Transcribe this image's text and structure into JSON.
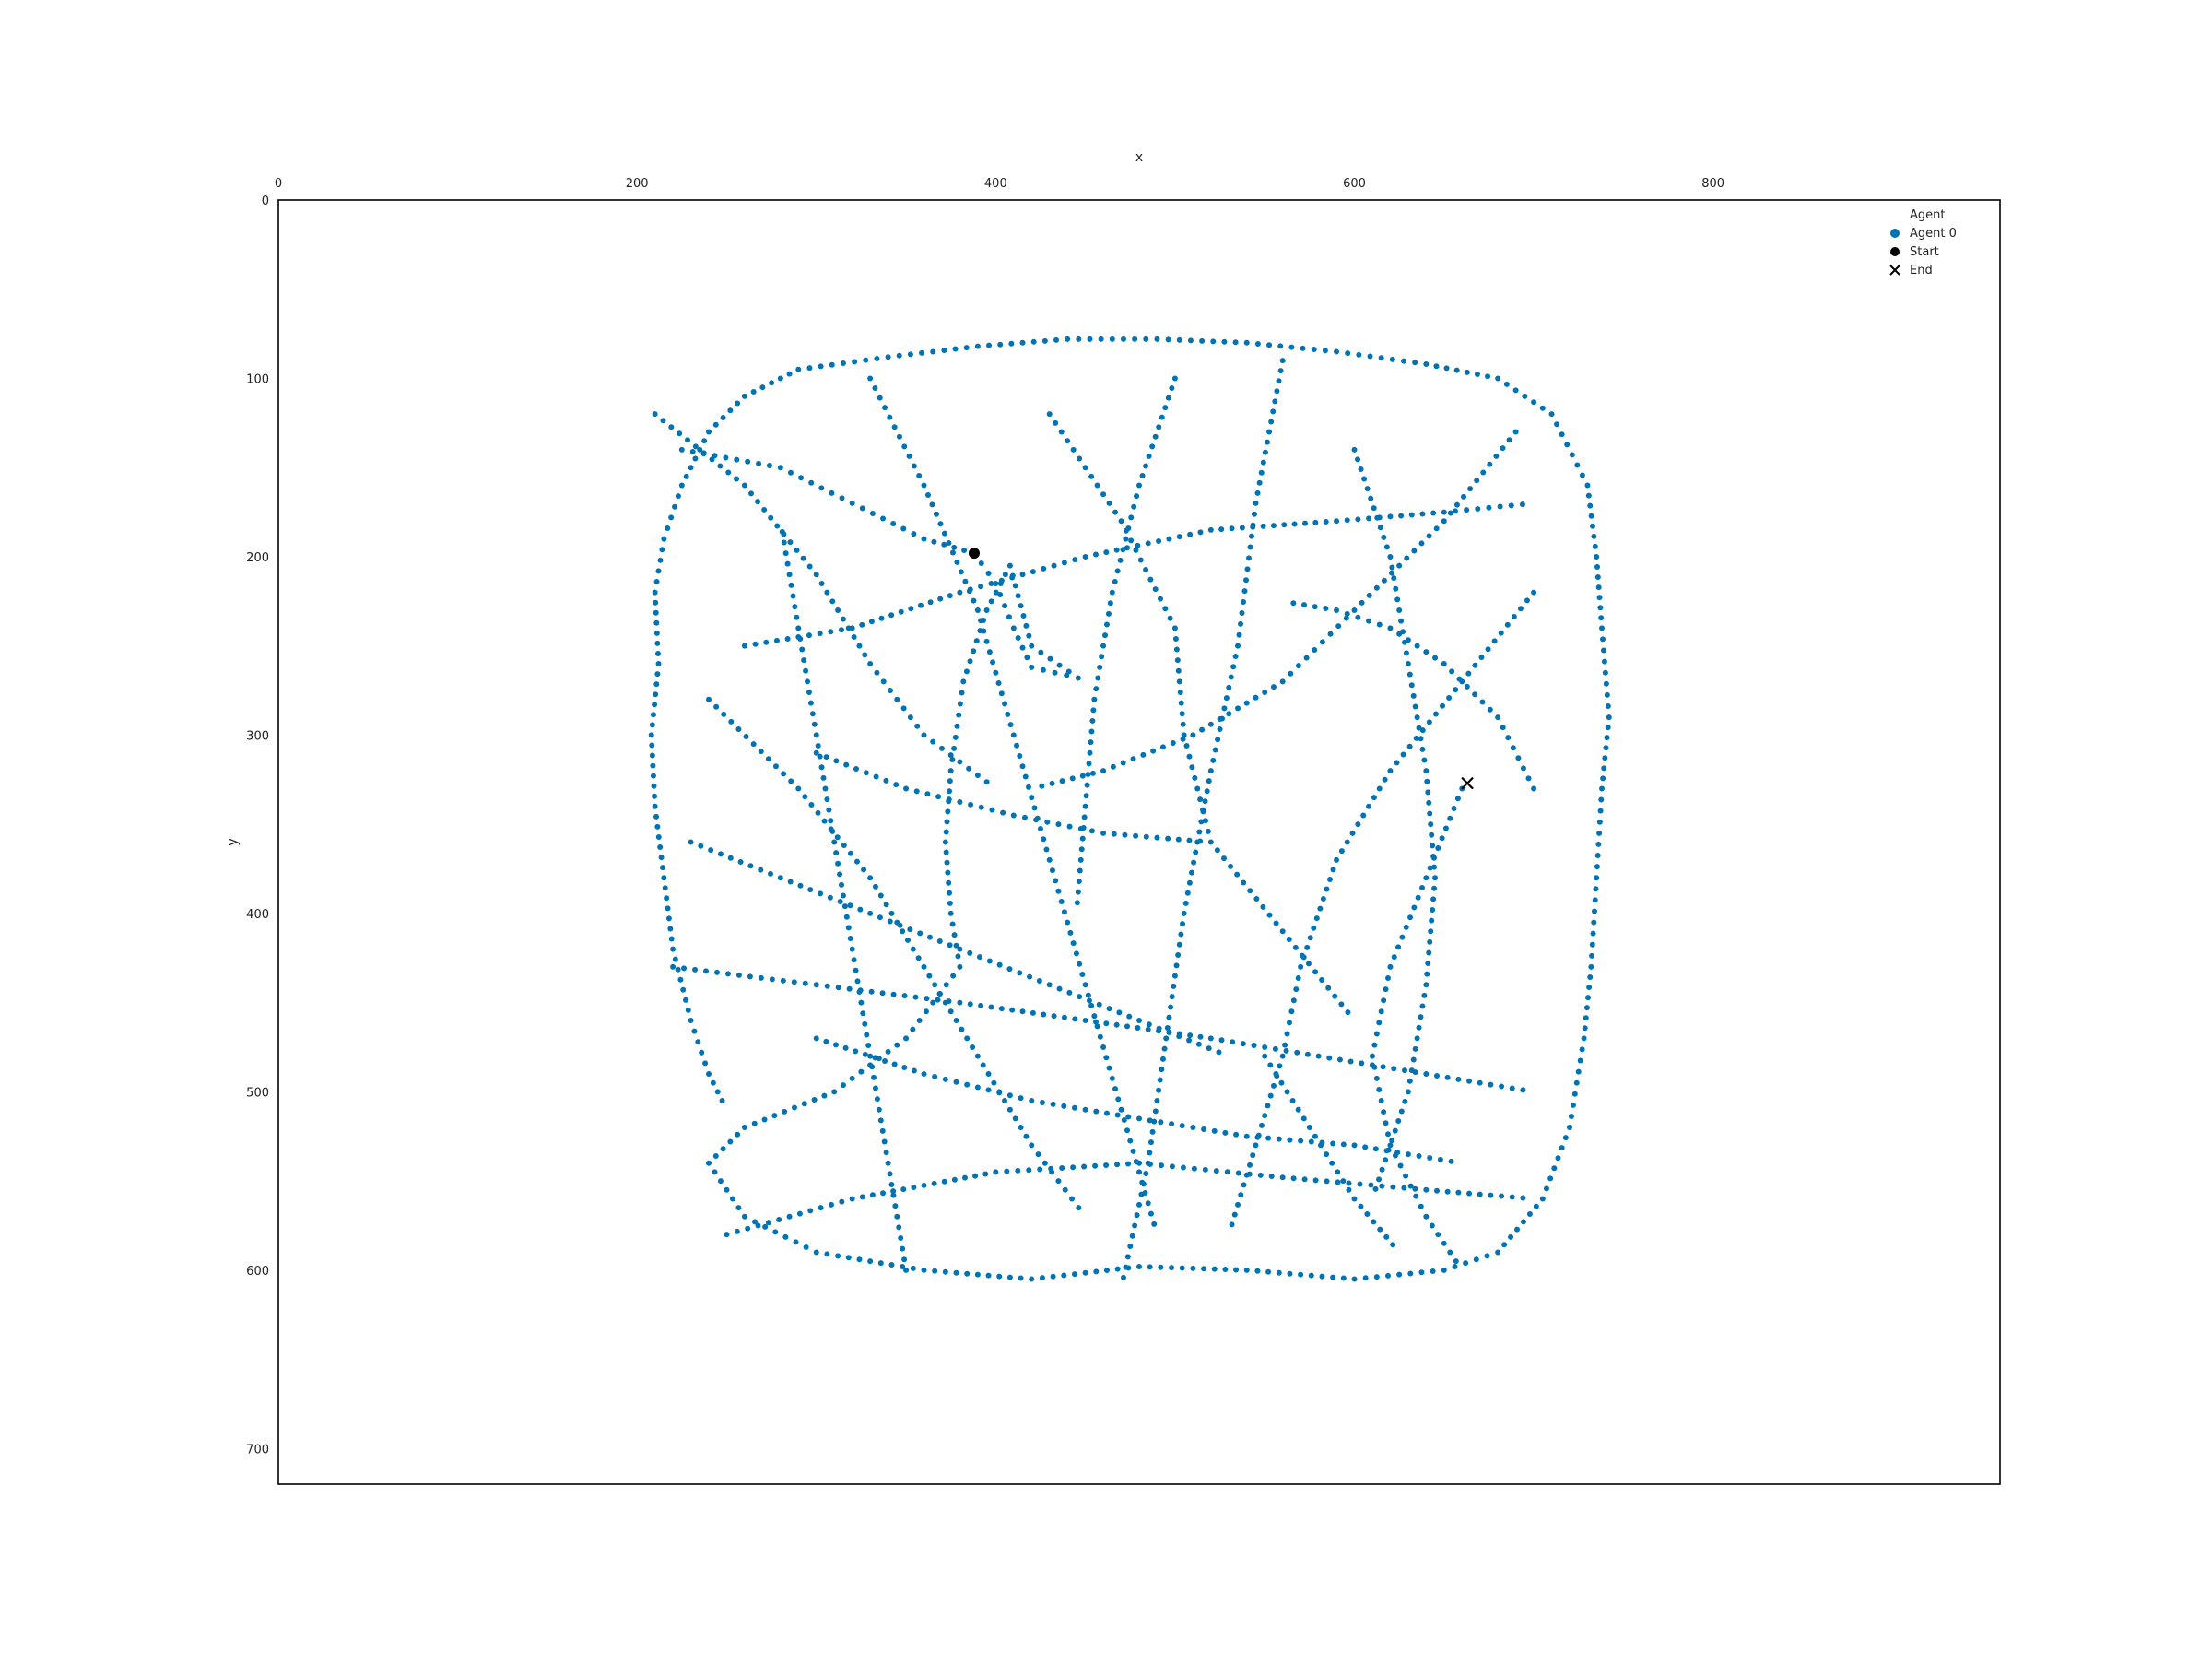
{
  "chart_data": {
    "type": "scatter",
    "title": "",
    "xlabel": "x",
    "ylabel": "y",
    "xlim": [
      0,
      960
    ],
    "ylim": [
      720,
      0
    ],
    "x_ticks": [
      0,
      200,
      400,
      600,
      800
    ],
    "y_ticks": [
      0,
      100,
      200,
      300,
      400,
      500,
      600,
      700
    ],
    "x_axis_position": "top",
    "y_axis_inverted": true,
    "grid": false,
    "legend": {
      "title": "Agent",
      "placement": "top-right",
      "entries": [
        {
          "label": "Agent 0",
          "marker": "circle",
          "color": "#0173b2"
        },
        {
          "label": "Start",
          "marker": "circle",
          "color": "#000000"
        },
        {
          "label": "End",
          "marker": "x",
          "color": "#000000"
        }
      ]
    },
    "series": [
      {
        "name": "Agent 0",
        "color": "#0173b2",
        "marker": "circle",
        "note_points": "trajectory polyline vertices, dense sampling along a random walk inside a rounded square arena",
        "path": [
          [
            388,
            198
          ],
          [
            400,
            215
          ],
          [
            410,
            240
          ],
          [
            420,
            262
          ],
          [
            446,
            268
          ],
          [
            420,
            250
          ],
          [
            408,
            205
          ],
          [
            395,
            230
          ],
          [
            382,
            270
          ],
          [
            375,
            320
          ],
          [
            372,
            360
          ],
          [
            375,
            400
          ],
          [
            380,
            430
          ],
          [
            350,
            470
          ],
          [
            310,
            500
          ],
          [
            260,
            520
          ],
          [
            240,
            540
          ],
          [
            260,
            570
          ],
          [
            300,
            590
          ],
          [
            360,
            600
          ],
          [
            420,
            605
          ],
          [
            480,
            598
          ],
          [
            540,
            600
          ],
          [
            600,
            605
          ],
          [
            650,
            600
          ],
          [
            680,
            590
          ],
          [
            705,
            560
          ],
          [
            720,
            520
          ],
          [
            728,
            470
          ],
          [
            732,
            430
          ],
          [
            735,
            380
          ],
          [
            738,
            330
          ],
          [
            742,
            290
          ],
          [
            738,
            240
          ],
          [
            735,
            200
          ],
          [
            730,
            160
          ],
          [
            710,
            120
          ],
          [
            680,
            100
          ],
          [
            640,
            92
          ],
          [
            590,
            85
          ],
          [
            540,
            80
          ],
          [
            490,
            78
          ],
          [
            440,
            78
          ],
          [
            390,
            82
          ],
          [
            340,
            88
          ],
          [
            290,
            95
          ],
          [
            260,
            110
          ],
          [
            240,
            130
          ],
          [
            225,
            160
          ],
          [
            215,
            190
          ],
          [
            210,
            220
          ],
          [
            212,
            260
          ],
          [
            208,
            300
          ],
          [
            210,
            340
          ],
          [
            215,
            380
          ],
          [
            220,
            420
          ],
          [
            230,
            460
          ],
          [
            240,
            490
          ],
          [
            250,
            510
          ]
        ],
        "extra_paths": [
          [
            [
              225,
              140
            ],
            [
              280,
              150
            ],
            [
              320,
              170
            ],
            [
              360,
              190
            ],
            [
              388,
              198
            ]
          ],
          [
            [
              300,
              310
            ],
            [
              350,
              330
            ],
            [
              410,
              345
            ],
            [
              460,
              355
            ],
            [
              520,
              360
            ]
          ],
          [
            [
              220,
              430
            ],
            [
              300,
              440
            ],
            [
              380,
              450
            ],
            [
              450,
              460
            ],
            [
              520,
              470
            ],
            [
              580,
              480
            ],
            [
              640,
              490
            ],
            [
              700,
              500
            ]
          ],
          [
            [
              330,
              100
            ],
            [
              360,
              160
            ],
            [
              390,
              230
            ],
            [
              410,
              300
            ],
            [
              430,
              370
            ],
            [
              450,
              440
            ],
            [
              470,
              510
            ],
            [
              490,
              580
            ]
          ],
          [
            [
              560,
              90
            ],
            [
              545,
              170
            ],
            [
              535,
              250
            ],
            [
              520,
              320
            ],
            [
              505,
              400
            ],
            [
              495,
              470
            ],
            [
              485,
              540
            ],
            [
              470,
              610
            ]
          ],
          [
            [
              690,
              130
            ],
            [
              650,
              180
            ],
            [
              600,
              230
            ],
            [
              560,
              270
            ],
            [
              510,
              300
            ],
            [
              460,
              320
            ],
            [
              420,
              330
            ]
          ],
          [
            [
              700,
              220
            ],
            [
              660,
              270
            ],
            [
              620,
              320
            ],
            [
              590,
              370
            ],
            [
              570,
              430
            ],
            [
              560,
              480
            ],
            [
              545,
              530
            ],
            [
              530,
              580
            ]
          ],
          [
            [
              240,
              280
            ],
            [
              290,
              330
            ],
            [
              330,
              380
            ],
            [
              360,
              430
            ],
            [
              390,
              480
            ],
            [
              420,
              530
            ],
            [
              450,
              570
            ]
          ],
          [
            [
              250,
              580
            ],
            [
              320,
              560
            ],
            [
              400,
              545
            ],
            [
              480,
              540
            ],
            [
              560,
              548
            ],
            [
              640,
              555
            ],
            [
              700,
              560
            ]
          ],
          [
            [
              210,
              120
            ],
            [
              260,
              160
            ],
            [
              300,
              210
            ],
            [
              330,
              260
            ],
            [
              360,
              300
            ],
            [
              400,
              330
            ]
          ],
          [
            [
              600,
              140
            ],
            [
              620,
              200
            ],
            [
              630,
              260
            ],
            [
              640,
              320
            ],
            [
              645,
              380
            ],
            [
              640,
              440
            ],
            [
              630,
              500
            ],
            [
              610,
              560
            ]
          ],
          [
            [
              430,
              120
            ],
            [
              470,
              180
            ],
            [
              500,
              240
            ],
            [
              505,
              300
            ],
            [
              520,
              360
            ],
            [
              560,
              410
            ],
            [
              600,
              460
            ]
          ],
          [
            [
              230,
              360
            ],
            [
              280,
              380
            ],
            [
              330,
              400
            ],
            [
              380,
              420
            ],
            [
              430,
              440
            ],
            [
              480,
              460
            ],
            [
              530,
              480
            ]
          ],
          [
            [
              660,
              330
            ],
            [
              640,
              380
            ],
            [
              620,
              430
            ],
            [
              610,
              480
            ],
            [
              620,
              530
            ],
            [
              640,
              570
            ],
            [
              660,
              600
            ]
          ],
          [
            [
              260,
              250
            ],
            [
              320,
              240
            ],
            [
              380,
              220
            ],
            [
              450,
              200
            ],
            [
              520,
              185
            ],
            [
              590,
              180
            ],
            [
              650,
              175
            ],
            [
              700,
              170
            ]
          ],
          [
            [
              500,
              100
            ],
            [
              480,
              160
            ],
            [
              465,
              220
            ],
            [
              455,
              280
            ],
            [
              450,
              340
            ],
            [
              445,
              400
            ]
          ],
          [
            [
              300,
              470
            ],
            [
              360,
              490
            ],
            [
              420,
              505
            ],
            [
              480,
              515
            ],
            [
              540,
              525
            ],
            [
              600,
              530
            ],
            [
              660,
              540
            ]
          ],
          [
            [
              700,
              330
            ],
            [
              680,
              290
            ],
            [
              650,
              260
            ],
            [
              620,
              240
            ],
            [
              590,
              230
            ],
            [
              560,
              225
            ]
          ],
          [
            [
              350,
              600
            ],
            [
              340,
              540
            ],
            [
              330,
              480
            ],
            [
              320,
              420
            ],
            [
              310,
              360
            ],
            [
              300,
              300
            ],
            [
              290,
              240
            ],
            [
              280,
              180
            ]
          ],
          [
            [
              550,
              480
            ],
            [
              575,
              520
            ],
            [
              600,
              560
            ],
            [
              625,
              590
            ]
          ]
        ]
      },
      {
        "name": "Start",
        "color": "#000000",
        "marker": "circle",
        "points": [
          {
            "x": 388,
            "y": 198
          }
        ]
      },
      {
        "name": "End",
        "color": "#000000",
        "marker": "x",
        "points": [
          {
            "x": 663,
            "y": 327
          }
        ]
      }
    ]
  }
}
